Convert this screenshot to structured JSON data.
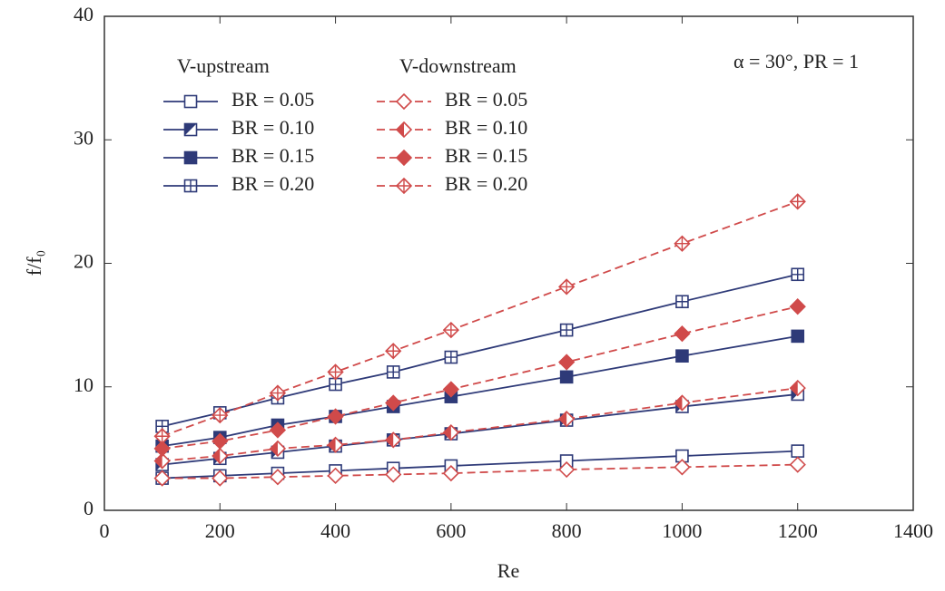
{
  "chart_data": {
    "type": "line",
    "xlabel": "Re",
    "ylabel": "f/f₀",
    "annotation": "α = 30°, PR = 1",
    "legend_titles": [
      "V-upstream",
      "V-downstream"
    ],
    "x": [
      100,
      200,
      300,
      400,
      500,
      600,
      800,
      1000,
      1200
    ],
    "xlim": [
      0,
      1400
    ],
    "xticks": [
      0,
      200,
      400,
      600,
      800,
      1000,
      1200,
      1400
    ],
    "ylim": [
      0,
      40
    ],
    "yticks": [
      0,
      10,
      20,
      30,
      40
    ],
    "series": [
      {
        "name": "BR = 0.05",
        "color": "#2e3a78",
        "dash": false,
        "marker": "square-open",
        "values": [
          2.6,
          2.8,
          3.0,
          3.2,
          3.4,
          3.6,
          4.0,
          4.4,
          4.8
        ]
      },
      {
        "name": "BR = 0.10",
        "color": "#2e3a78",
        "dash": false,
        "marker": "square-half",
        "values": [
          3.7,
          4.2,
          4.7,
          5.2,
          5.7,
          6.2,
          7.3,
          8.4,
          9.4
        ]
      },
      {
        "name": "BR = 0.15",
        "color": "#2e3a78",
        "dash": false,
        "marker": "square-filled",
        "values": [
          5.2,
          5.9,
          6.9,
          7.6,
          8.4,
          9.2,
          10.8,
          12.5,
          14.1
        ]
      },
      {
        "name": "BR = 0.20",
        "color": "#2e3a78",
        "dash": false,
        "marker": "square-cross",
        "values": [
          6.8,
          7.9,
          9.1,
          10.2,
          11.2,
          12.4,
          14.6,
          16.9,
          19.1
        ]
      },
      {
        "name": "BR = 0.05",
        "color": "#d04a4a",
        "dash": true,
        "marker": "diamond-open",
        "values": [
          2.6,
          2.6,
          2.7,
          2.8,
          2.9,
          3.0,
          3.3,
          3.5,
          3.7
        ]
      },
      {
        "name": "BR = 0.10",
        "color": "#d04a4a",
        "dash": true,
        "marker": "diamond-half",
        "values": [
          4.0,
          4.4,
          5.0,
          5.3,
          5.7,
          6.3,
          7.4,
          8.7,
          9.9
        ]
      },
      {
        "name": "BR = 0.15",
        "color": "#d04a4a",
        "dash": true,
        "marker": "diamond-filled",
        "values": [
          5.0,
          5.6,
          6.5,
          7.6,
          8.7,
          9.8,
          12.0,
          14.3,
          16.5
        ]
      },
      {
        "name": "BR = 0.20",
        "color": "#d04a4a",
        "dash": true,
        "marker": "diamond-cross",
        "values": [
          6.0,
          7.7,
          9.5,
          11.2,
          12.9,
          14.6,
          18.1,
          21.6,
          25.0
        ]
      }
    ]
  }
}
